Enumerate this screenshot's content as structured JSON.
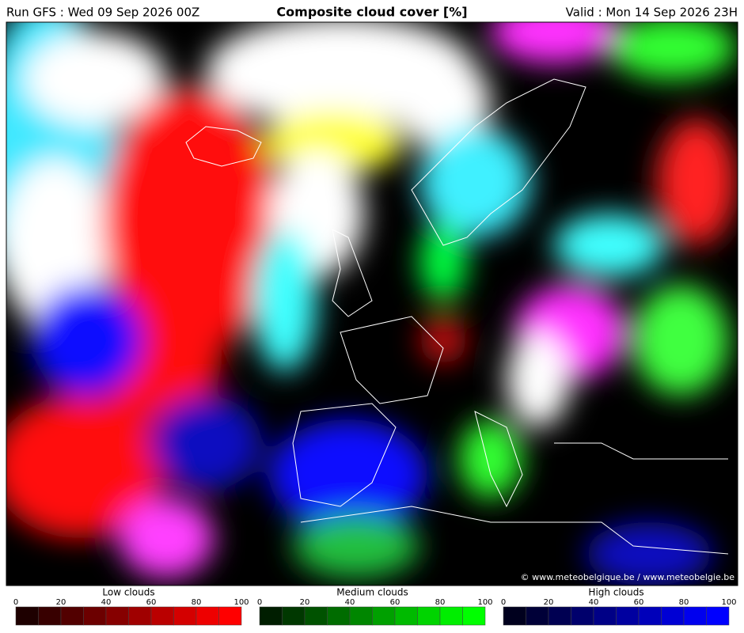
{
  "header": {
    "run": "Run GFS : Wed 09 Sep 2026 00Z",
    "title": "Composite cloud cover [%]",
    "valid": "Valid : Mon 14 Sep 2026 23H"
  },
  "credit": "© www.meteobelgique.be / www.meteobelgie.be",
  "legends": [
    {
      "title": "Low clouds",
      "ticks": [
        0,
        20,
        40,
        60,
        80,
        100
      ],
      "colors": [
        "#1e0000",
        "#380000",
        "#520000",
        "#6c0000",
        "#860000",
        "#a00000",
        "#ba0000",
        "#d40000",
        "#ee0000",
        "#ff0000"
      ]
    },
    {
      "title": "Medium clouds",
      "ticks": [
        0,
        20,
        40,
        60,
        80,
        100
      ],
      "colors": [
        "#001e00",
        "#003800",
        "#005200",
        "#006c00",
        "#008600",
        "#00a000",
        "#00ba00",
        "#00d400",
        "#00ee00",
        "#00ff00"
      ]
    },
    {
      "title": "High clouds",
      "ticks": [
        0,
        20,
        40,
        60,
        80,
        100
      ],
      "colors": [
        "#00001e",
        "#000038",
        "#000052",
        "#00006c",
        "#000086",
        "#0000a0",
        "#0000ba",
        "#0000d4",
        "#0000ee",
        "#0000ff"
      ]
    }
  ]
}
